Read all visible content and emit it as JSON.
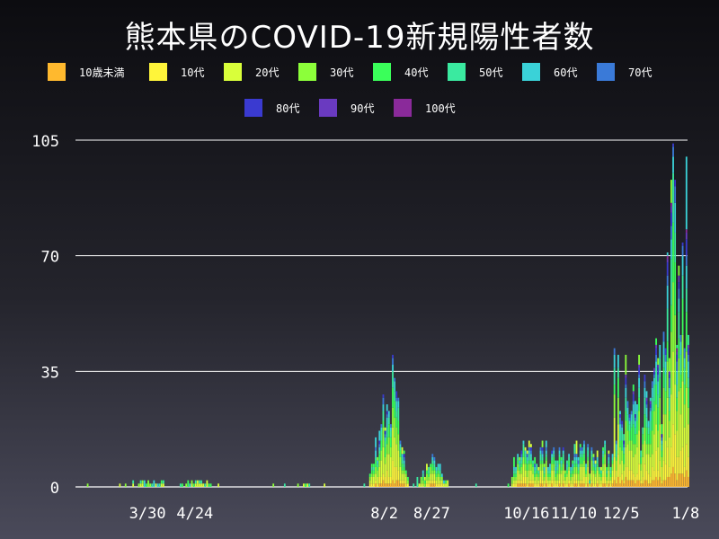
{
  "chart_data": {
    "type": "bar",
    "stacked": true,
    "title": "熊本県のCOVID-19新規陽性者数",
    "ylim": [
      0,
      105
    ],
    "yticks": [
      0,
      35,
      70,
      105
    ],
    "grid": true,
    "legend_placement": "top",
    "xlabel": "",
    "ylabel": "",
    "x_tick_labels": [
      "3/30",
      "4/24",
      "8/2",
      "8/27",
      "10/16",
      "11/10",
      "12/5",
      "1/8"
    ],
    "approximate_daily_totals": [
      {
        "date": "3/30",
        "value": 1
      },
      {
        "date": "4/24",
        "value": 1
      },
      {
        "date": "8/2",
        "value": 32
      },
      {
        "date": "8/6",
        "value": 40
      },
      {
        "date": "8/27",
        "value": 10
      },
      {
        "date": "10/16",
        "value": 18
      },
      {
        "date": "11/10",
        "value": 10
      },
      {
        "date": "12/5",
        "value": 25
      },
      {
        "date": "12/22",
        "value": 51
      },
      {
        "date": "1/1",
        "value": 104
      },
      {
        "date": "1/8",
        "value": 100
      }
    ],
    "series": [
      {
        "name": "10歳未満",
        "color": "#ffb92e"
      },
      {
        "name": "10代",
        "color": "#fff53a"
      },
      {
        "name": "20代",
        "color": "#d9ff3a"
      },
      {
        "name": "30代",
        "color": "#8cff3a"
      },
      {
        "name": "40代",
        "color": "#3aff5a"
      },
      {
        "name": "50代",
        "color": "#3aeaa0"
      },
      {
        "name": "60代",
        "color": "#3ad2d8"
      },
      {
        "name": "70代",
        "color": "#3a7ad8"
      },
      {
        "name": "80代",
        "color": "#3a3ad0"
      },
      {
        "name": "90代",
        "color": "#6a3ac0"
      },
      {
        "name": "100代",
        "color": "#8a2a9a"
      }
    ]
  }
}
